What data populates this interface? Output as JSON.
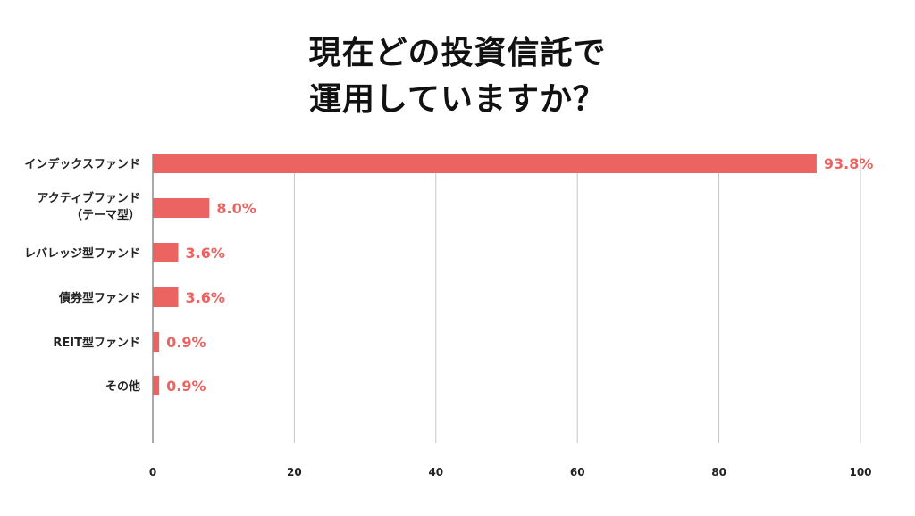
{
  "title_lines": [
    "現在どの投資信託で",
    "運用していますか？"
  ],
  "chart_data": {
    "type": "bar",
    "orientation": "horizontal",
    "categories": [
      [
        "インデックスファンド"
      ],
      [
        "アクティブファンド",
        "（テーマ型）"
      ],
      [
        "レバレッジ型ファンド"
      ],
      [
        "債券型ファンド"
      ],
      [
        "REIT型ファンド"
      ],
      [
        "その他"
      ]
    ],
    "values": [
      93.8,
      8.0,
      3.6,
      3.6,
      0.9,
      0.9
    ],
    "value_labels": [
      "93.8%",
      "8.0%",
      "3.6%",
      "3.6%",
      "0.9%",
      "0.9%"
    ],
    "xlim": [
      0,
      100
    ],
    "xticks": [
      0,
      20,
      40,
      60,
      80,
      100
    ],
    "grid": true,
    "bar_color": "#ec6461",
    "label_color": "#ec6461"
  }
}
